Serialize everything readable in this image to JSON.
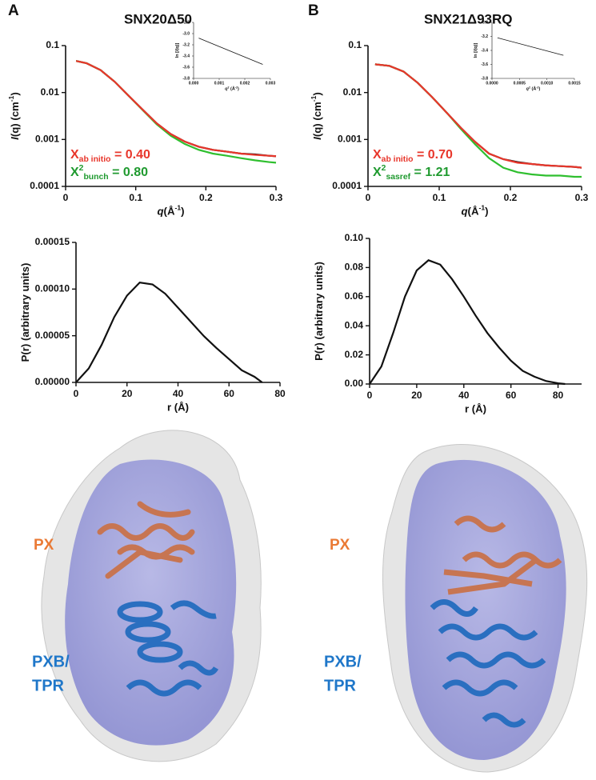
{
  "chart_data": [
    {
      "type": "line",
      "panel": "A",
      "title": "SNX20Δ50",
      "log_y": true,
      "xlabel": [
        "q",
        "(Å",
        "-1",
        ")"
      ],
      "ylabel": [
        "I",
        "(q) (cm",
        "-1",
        ")"
      ],
      "x": [
        0.015,
        0.03,
        0.05,
        0.07,
        0.09,
        0.11,
        0.13,
        0.15,
        0.17,
        0.19,
        0.21,
        0.23,
        0.25,
        0.27,
        0.29,
        0.3
      ],
      "xlim": [
        0,
        0.3
      ],
      "xticks": [
        0,
        0.1,
        0.2,
        0.3
      ],
      "ylim": [
        0.0001,
        0.1
      ],
      "yticks": [
        0.0001,
        0.001,
        0.01,
        0.1
      ],
      "series": [
        {
          "color": "#111111",
          "values": [
            0.047,
            0.042,
            0.03,
            0.017,
            0.0085,
            0.0043,
            0.0022,
            0.0013,
            0.0009,
            0.0007,
            0.0006,
            0.00055,
            0.0005,
            0.00048,
            0.00045,
            0.00044
          ]
        },
        {
          "color": "#2fbf2f",
          "values": [
            0.047,
            0.042,
            0.03,
            0.017,
            0.0085,
            0.0042,
            0.0021,
            0.0012,
            0.0008,
            0.0006,
            0.0005,
            0.00045,
            0.0004,
            0.00036,
            0.00033,
            0.00032
          ]
        },
        {
          "color": "#e8362b",
          "values": [
            0.047,
            0.042,
            0.03,
            0.017,
            0.0085,
            0.0043,
            0.0022,
            0.0013,
            0.0009,
            0.0007,
            0.0006,
            0.00055,
            0.0005,
            0.00047,
            0.00045,
            0.00044
          ]
        }
      ],
      "annotations": [
        {
          "color": "#e8362b",
          "parts": [
            "X",
            "ab initio",
            " = 0.40"
          ]
        },
        {
          "color": "#1f9a2f",
          "parts": [
            "X",
            "2",
            "bunch",
            " = 0.80"
          ]
        }
      ]
    },
    {
      "type": "line",
      "xlabel": [
        "q",
        "2",
        " (Å",
        "-2",
        ")"
      ],
      "ylabel": [
        "ln [",
        "I",
        "(q)]"
      ],
      "x": [
        0.0002,
        0.0027
      ],
      "xlim": [
        0,
        0.003
      ],
      "xticks": [
        {
          "value": 0,
          "label": "0.000"
        },
        0.001,
        0.002,
        0.003
      ],
      "ylim": [
        -3.8,
        -2.8
      ],
      "yticks": [
        -2.8,
        {
          "value": -3,
          "label": "-3.0"
        },
        -3.2,
        -3.4,
        -3.6,
        -3.8
      ],
      "series": [
        {
          "color": "#111111",
          "values": [
            -3.08,
            -3.55
          ]
        }
      ]
    },
    {
      "type": "line",
      "xlabel": [
        "r (Å)"
      ],
      "ylabel": [
        "P(r) (arbitrary units)"
      ],
      "x": [
        0,
        5,
        10,
        15,
        20,
        25,
        30,
        35,
        40,
        45,
        50,
        55,
        60,
        65,
        70,
        73
      ],
      "xlim": [
        0,
        80
      ],
      "xticks": [
        0,
        20,
        40,
        60,
        80
      ],
      "ylim": [
        0,
        0.00015
      ],
      "yticks": [
        {
          "value": 0,
          "label": "0.00000"
        },
        {
          "value": 5e-05,
          "label": "0.00005"
        },
        {
          "value": 0.0001,
          "label": "0.00010"
        },
        {
          "value": 0.00015,
          "label": "0.00015"
        }
      ],
      "series": [
        {
          "color": "#111111",
          "values": [
            0,
            1.5e-05,
            4e-05,
            7e-05,
            9.3e-05,
            0.000107,
            0.000105,
            9.5e-05,
            8e-05,
            6.5e-05,
            5e-05,
            3.7e-05,
            2.5e-05,
            1.3e-05,
            6e-06,
            0
          ]
        }
      ]
    },
    {
      "type": "line",
      "panel": "B",
      "title": "SNX21Δ93RQ",
      "log_y": true,
      "xlabel": [
        "q",
        "(Å",
        "-1",
        ")"
      ],
      "ylabel": [
        "I",
        "(q) (cm",
        "-1",
        ")"
      ],
      "x": [
        0.01,
        0.03,
        0.05,
        0.07,
        0.09,
        0.11,
        0.13,
        0.15,
        0.17,
        0.19,
        0.21,
        0.23,
        0.25,
        0.27,
        0.29,
        0.3
      ],
      "xlim": [
        0,
        0.3
      ],
      "xticks": [
        0,
        0.1,
        0.2,
        0.3
      ],
      "ylim": [
        0.0001,
        0.1
      ],
      "yticks": [
        0.0001,
        0.001,
        0.01,
        0.1
      ],
      "series": [
        {
          "color": "#111111",
          "values": [
            0.04,
            0.037,
            0.028,
            0.016,
            0.008,
            0.0038,
            0.0018,
            0.0009,
            0.0005,
            0.00038,
            0.00033,
            0.0003,
            0.00028,
            0.00027,
            0.00026,
            0.00025
          ]
        },
        {
          "color": "#2fbf2f",
          "values": [
            0.04,
            0.037,
            0.028,
            0.016,
            0.008,
            0.0038,
            0.0017,
            0.0008,
            0.0004,
            0.00025,
            0.0002,
            0.00018,
            0.00017,
            0.00017,
            0.00016,
            0.00016
          ]
        },
        {
          "color": "#e8362b",
          "values": [
            0.04,
            0.037,
            0.028,
            0.016,
            0.008,
            0.0038,
            0.0018,
            0.0009,
            0.0005,
            0.00038,
            0.00032,
            0.0003,
            0.00028,
            0.00027,
            0.00026,
            0.00025
          ]
        }
      ],
      "annotations": [
        {
          "color": "#e8362b",
          "parts": [
            "X",
            "ab initio",
            " = 0.70"
          ]
        },
        {
          "color": "#1f9a2f",
          "parts": [
            "X",
            "2",
            "sasref",
            " = 1.21"
          ]
        }
      ]
    },
    {
      "type": "line",
      "xlabel": [
        "q",
        "2",
        " (Å",
        "-2",
        ")"
      ],
      "ylabel": [
        "ln [",
        "I",
        "(q)]"
      ],
      "x": [
        0.0001,
        0.0013
      ],
      "xlim": [
        0,
        0.0015
      ],
      "xticks": [
        {
          "value": 0,
          "label": "0.0000"
        },
        0.0005,
        {
          "value": 0.001,
          "label": "0.0010"
        },
        0.0015
      ],
      "ylim": [
        -3.8,
        -3
      ],
      "yticks": [
        {
          "value": -3,
          "label": "-3.0"
        },
        -3.2,
        -3.4,
        -3.6,
        -3.8
      ],
      "series": [
        {
          "color": "#111111",
          "values": [
            -3.22,
            -3.47
          ]
        }
      ]
    },
    {
      "type": "line",
      "xlabel": [
        "r (Å)"
      ],
      "ylabel": [
        "P(r) (arbitrary units)"
      ],
      "x": [
        0,
        5,
        10,
        15,
        20,
        25,
        30,
        35,
        40,
        45,
        50,
        55,
        60,
        65,
        70,
        75,
        80,
        83
      ],
      "xlim": [
        0,
        90
      ],
      "xticks": [
        0,
        20,
        40,
        60,
        80
      ],
      "ylim": [
        0,
        0.1
      ],
      "yticks": [
        {
          "value": 0,
          "label": "0.00"
        },
        {
          "value": 0.02,
          "label": "0.02"
        },
        {
          "value": 0.04,
          "label": "0.04"
        },
        {
          "value": 0.06,
          "label": "0.06"
        },
        {
          "value": 0.08,
          "label": "0.08"
        },
        {
          "value": 0.1,
          "label": "0.10"
        }
      ],
      "series": [
        {
          "color": "#111111",
          "values": [
            0,
            0.012,
            0.035,
            0.06,
            0.078,
            0.085,
            0.082,
            0.072,
            0.06,
            0.047,
            0.035,
            0.025,
            0.016,
            0.009,
            0.005,
            0.002,
            0.0005,
            0
          ]
        }
      ]
    }
  ],
  "structures": [
    {
      "labels": [
        "PX",
        "PXB/",
        "TPR"
      ]
    },
    {
      "labels": [
        "PX",
        "PXB/",
        "TPR"
      ]
    }
  ]
}
